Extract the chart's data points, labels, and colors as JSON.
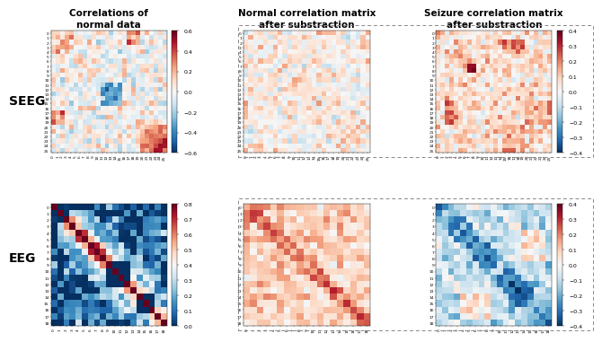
{
  "title_left": "Correlations of\nnormal data",
  "title_mid": "Normal correlation matrix\nafter substraction",
  "title_right": "Seizure correlation matrix\nafter substraction",
  "label_seeg": "SEEG",
  "label_eeg": "EEG",
  "seeg_n": 26,
  "eeg_n": 19,
  "seeg_clim": [
    -0.6,
    0.6
  ],
  "seeg_after_clim": [
    -0.4,
    0.4
  ],
  "eeg_clim": [
    0.0,
    0.8
  ],
  "eeg_after_clim": [
    -0.4,
    0.4
  ],
  "cmap": "RdBu_r",
  "bg_color": "#ffffff",
  "title_fontsize": 7.5,
  "label_fontsize": 10,
  "tick_fontsize": 3.2,
  "cbar_fontsize": 4.5,
  "dashed_color": "#888888",
  "dashed_lw": 0.7
}
